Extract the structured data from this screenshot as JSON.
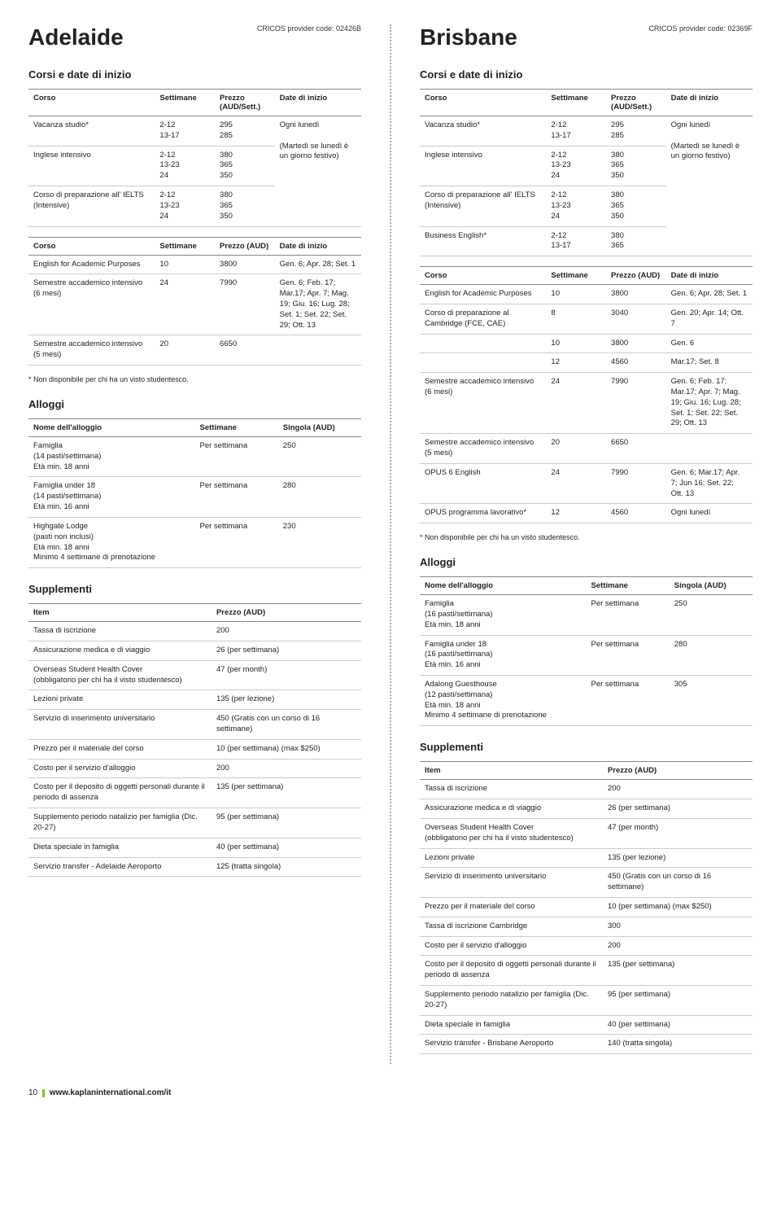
{
  "adelaide": {
    "city": "Adelaide",
    "cricos": "CRICOS provider code: 02426B",
    "corsi_title": "Corsi e date di inizio",
    "note": "* Non disponibile per chi ha un visto studentesco.",
    "t1": {
      "h": [
        "Corso",
        "Settimane",
        "Prezzo (AUD/Sett.)",
        "Date di inizio"
      ],
      "rows": [
        [
          "Vacanza studio*",
          "2-12\n13-17",
          "295\n285",
          "Ogni lunedì\n\n(Martedì se lunedì è un giorno festivo)"
        ],
        [
          "Inglese intensivo",
          "2-12\n13-23\n24",
          "380\n365\n350",
          ""
        ],
        [
          "Corso di preparazione all' IELTS (Intensive)",
          "2-12\n13-23\n24",
          "380\n365\n350",
          ""
        ]
      ]
    },
    "t2": {
      "h": [
        "Corso",
        "Settimane",
        "Prezzo (AUD)",
        "Date di inizio"
      ],
      "rows": [
        [
          "English for Academic Purposes",
          "10",
          "3800",
          "Gen. 6; Apr. 28; Set. 1"
        ],
        [
          "Semestre accademico intensivo (6 mesi)",
          "24",
          "7990",
          "Gen. 6; Feb. 17; Mar.17; Apr. 7; Mag. 19; Giu. 16; Lug. 28; Set. 1; Set. 22; Set. 29; Ott. 13"
        ],
        [
          "Semestre accademico intensivo (5 mesi)",
          "20",
          "6650",
          ""
        ]
      ]
    },
    "alloggi_title": "Alloggi",
    "alloggi": {
      "h": [
        "Nome dell'alloggio",
        "Settimane",
        "Singola (AUD)"
      ],
      "rows": [
        [
          "Famiglia\n(14 pasti/settimana)\nEtà min. 18 anni",
          "Per settimana",
          "250"
        ],
        [
          "Famiglia under 18\n(14 pasti/settimana)\nEtà min. 16 anni",
          "Per settimana",
          "280"
        ],
        [
          "Highgate Lodge\n(pasti non inclusi)\nEtà min. 18 anni\nMinimo 4 settimane di prenotazione",
          "Per settimana",
          "230"
        ]
      ]
    },
    "supp_title": "Supplementi",
    "supp": {
      "h": [
        "Item",
        "Prezzo (AUD)"
      ],
      "rows": [
        [
          "Tassa di iscrizione",
          "200"
        ],
        [
          "Assicurazione medica e di viaggio",
          "26 (per settimana)"
        ],
        [
          "Overseas Student Health Cover\n(obbligatorio per chi ha il visto studentesco)",
          "47 (per month)"
        ],
        [
          "Lezioni private",
          "135 (per lezione)"
        ],
        [
          "Servizio di inserimento universitario",
          "450 (Gratis con un corso di 16 settimane)"
        ],
        [
          "Prezzo per il materiale del corso",
          "10 (per settimana) (max $250)"
        ],
        [
          "Costo per il servizio d'alloggio",
          "200"
        ],
        [
          "Costo per il deposito di oggetti personali durante il periodo di assenza",
          "135 (per settimana)"
        ],
        [
          "Supplemento periodo natalizio per famiglia (Dic. 20-27)",
          "95 (per settimana)"
        ],
        [
          "Dieta speciale in famiglia",
          "40 (per settimana)"
        ],
        [
          "Servizio transfer - Adelaide Aeroporto",
          "125 (tratta singola)"
        ]
      ]
    }
  },
  "brisbane": {
    "city": "Brisbane",
    "cricos": "CRICOS provider code: 02369F",
    "corsi_title": "Corsi e date di inizio",
    "note": "* Non disponibile per chi ha un visto studentesco.",
    "t1": {
      "h": [
        "Corso",
        "Settimane",
        "Prezzo (AUD/Sett.)",
        "Date di inizio"
      ],
      "rows": [
        [
          "Vacanza studio*",
          "2-12\n13-17",
          "295\n285",
          "Ogni lunedì\n\n(Martedì se lunedì è un giorno festivo)"
        ],
        [
          "Inglese intensivo",
          "2-12\n13-23\n24",
          "380\n365\n350",
          ""
        ],
        [
          "Corso di preparazione all' IELTS (Intensive)",
          "2-12\n13-23\n24",
          "380\n365\n350",
          ""
        ],
        [
          "Business English*",
          "2-12\n13-17",
          "380\n365",
          ""
        ]
      ]
    },
    "t2": {
      "h": [
        "Corso",
        "Settimane",
        "Prezzo (AUD)",
        "Date di inizio"
      ],
      "rows": [
        [
          "English for Academic Purposes",
          "10",
          "3800",
          "Gen. 6; Apr. 28; Set. 1"
        ],
        [
          "Corso di preparazione al Cambridge (FCE, CAE)",
          "8",
          "3040",
          "Gen. 20; Apr. 14; Ott. 7"
        ],
        [
          "",
          "10",
          "3800",
          "Gen. 6"
        ],
        [
          "",
          "12",
          "4560",
          "Mar.17; Set. 8"
        ],
        [
          "Semestre accademico intensivo (6 mesi)",
          "24",
          "7990",
          "Gen. 6; Feb. 17; Mar.17; Apr. 7; Mag. 19; Giu. 16; Lug. 28; Set. 1; Set. 22; Set. 29; Ott. 13"
        ],
        [
          "Semestre accademico intensivo (5 mesi)",
          "20",
          "6650",
          ""
        ],
        [
          "OPUS 6 English",
          "24",
          "7990",
          "Gen. 6; Mar.17; Apr. 7; Jun 16; Set. 22; Ott. 13"
        ],
        [
          "OPUS programma lavorativo*",
          "12",
          "4560",
          "Ogni lunedì"
        ]
      ]
    },
    "alloggi_title": "Alloggi",
    "alloggi": {
      "h": [
        "Nome dell'alloggio",
        "Settimane",
        "Singola (AUD)"
      ],
      "rows": [
        [
          "Famiglia\n(16 pasti/settimana)\nEtà min. 18 anni",
          "Per settimana",
          "250"
        ],
        [
          "Famiglia under 18\n(16 pasti/settimana)\nEtà min. 16 anni",
          "Per settimana",
          "280"
        ],
        [
          "Adalong Guesthouse\n(12 pasti/settimana)\nEtà min. 18 anni\nMinimo 4 settimane di prenotazione",
          "Per settimana",
          "305"
        ]
      ]
    },
    "supp_title": "Supplementi",
    "supp": {
      "h": [
        "Item",
        "Prezzo (AUD)"
      ],
      "rows": [
        [
          "Tassa di iscrizione",
          "200"
        ],
        [
          "Assicurazione medica e di viaggio",
          "26 (per settimana)"
        ],
        [
          "Overseas Student Health Cover\n(obbligatorio per chi ha il visto studentesco)",
          "47 (per month)"
        ],
        [
          "Lezioni private",
          "135 (per lezione)"
        ],
        [
          "Servizio di inserimento universitario",
          "450 (Gratis con un corso di 16 settimane)"
        ],
        [
          "Prezzo per il materiale del corso",
          "10 (per settimana) (max $250)"
        ],
        [
          "Tassa di iscrizione Cambridge",
          "300"
        ],
        [
          "Costo per il servizio d'alloggio",
          "200"
        ],
        [
          "Costo per il deposito di oggetti personali durante il periodo di assenza",
          "135 (per settimana)"
        ],
        [
          "Supplemento periodo natalizio per famiglia (Dic. 20-27)",
          "95 (per settimana)"
        ],
        [
          "Dieta speciale in famiglia",
          "40 (per settimana)"
        ],
        [
          "Servizio transfer - Brisbane Aeroporto",
          "140 (tratta singola)"
        ]
      ]
    }
  },
  "footer": {
    "page": "10",
    "url": "www.kaplaninternational.com/it"
  }
}
